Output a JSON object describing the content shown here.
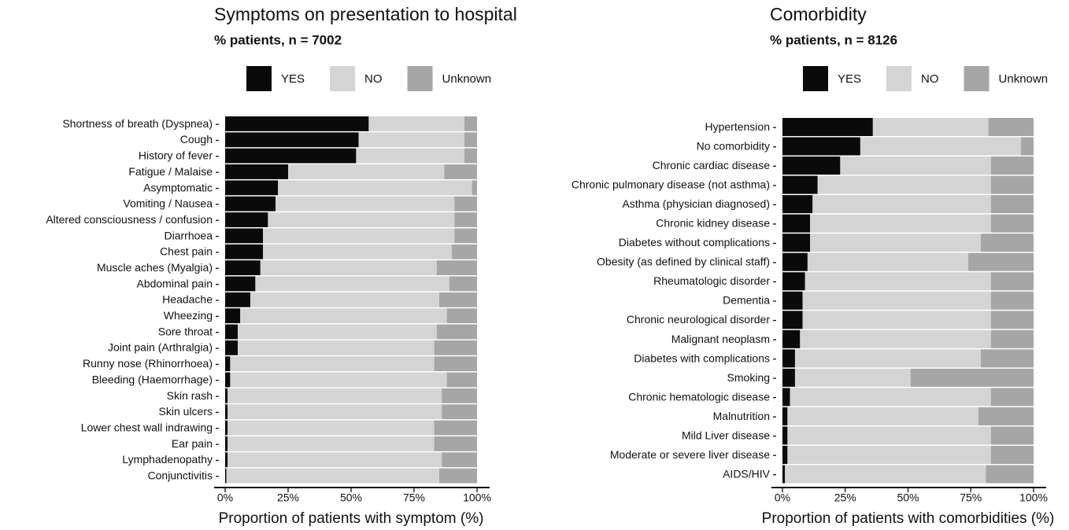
{
  "chart_data": [
    {
      "type": "bar",
      "orientation": "horizontal",
      "stacked": true,
      "title": "Symptoms on presentation to hospital",
      "subtitle": "% patients, n = 7002",
      "x_label": "Proportion of patients with symptom (%)",
      "categories": [
        "Shortness of breath (Dyspnea)",
        "Cough",
        "History of fever",
        "Fatigue / Malaise",
        "Asymptomatic",
        "Vomiting / Nausea",
        "Altered consciousness / confusion",
        "Diarrhoea",
        "Chest pain",
        "Muscle aches (Myalgia)",
        "Abdominal pain",
        "Headache",
        "Wheezing",
        "Sore throat",
        "Joint pain (Arthralgia)",
        "Runny nose (Rhinorrhoea)",
        "Bleeding (Haemorrhage)",
        "Skin rash",
        "Skin ulcers",
        "Lower chest wall indrawing",
        "Ear pain",
        "Lymphadenopathy",
        "Conjunctivitis"
      ],
      "highlight": [
        4
      ],
      "highlight_color": "#e8251f",
      "series": [
        {
          "name": "YES",
          "color": "#0a0a0a",
          "values": [
            57,
            53,
            52,
            25,
            21,
            20,
            17,
            15,
            15,
            14,
            12,
            10,
            6,
            5,
            5,
            2,
            2,
            1,
            1,
            1,
            1,
            1,
            0.5
          ]
        },
        {
          "name": "NO",
          "color": "#d4d4d4",
          "values": [
            38,
            42,
            43,
            62,
            77,
            71,
            74,
            76,
            75,
            70,
            77,
            75,
            82,
            79,
            78,
            81,
            86,
            85,
            85,
            82,
            82,
            85,
            84.5
          ]
        },
        {
          "name": "Unknown",
          "color": "#a6a6a6",
          "values": [
            5,
            5,
            5,
            13,
            2,
            9,
            9,
            9,
            10,
            16,
            11,
            15,
            12,
            16,
            17,
            17,
            12,
            14,
            14,
            17,
            17,
            14,
            15
          ]
        }
      ],
      "xlim": [
        0,
        100
      ],
      "xticks": [
        {
          "value": 0,
          "label": "0%"
        },
        {
          "value": 25,
          "label": "25%"
        },
        {
          "value": 50,
          "label": "50%"
        },
        {
          "value": 75,
          "label": "75%"
        },
        {
          "value": 100,
          "label": "100%"
        }
      ]
    },
    {
      "type": "bar",
      "orientation": "horizontal",
      "stacked": true,
      "title": "Comorbidity",
      "subtitle": "% patients, n = 8126",
      "x_label": "Proportion of patients with comorbidities (%)",
      "categories": [
        "Hypertension",
        "No comorbidity",
        "Chronic cardiac disease",
        "Chronic pulmonary disease (not asthma)",
        "Asthma (physician diagnosed)",
        "Chronic kidney disease",
        "Diabetes without complications",
        "Obesity (as defined by clinical staff)",
        "Rheumatologic disorder",
        "Dementia",
        "Chronic neurological disorder",
        "Malignant neoplasm",
        "Diabetes with complications",
        "Smoking",
        "Chronic hematologic disease",
        "Malnutrition",
        "Mild Liver disease",
        "Moderate or severe liver disease",
        "AIDS/HIV"
      ],
      "highlight": [
        1
      ],
      "highlight_color": "#e8251f",
      "series": [
        {
          "name": "YES",
          "color": "#0a0a0a",
          "values": [
            36,
            31,
            23,
            14,
            12,
            11,
            11,
            10,
            9,
            8,
            8,
            7,
            5,
            5,
            3,
            2,
            2,
            2,
            1
          ]
        },
        {
          "name": "NO",
          "color": "#d4d4d4",
          "values": [
            46,
            64,
            60,
            69,
            71,
            72,
            68,
            64,
            74,
            75,
            75,
            76,
            74,
            46,
            80,
            76,
            81,
            81,
            80
          ]
        },
        {
          "name": "Unknown",
          "color": "#a6a6a6",
          "values": [
            18,
            5,
            17,
            17,
            17,
            17,
            21,
            26,
            17,
            17,
            17,
            17,
            21,
            49,
            17,
            22,
            17,
            17,
            19
          ]
        }
      ],
      "xlim": [
        0,
        100
      ],
      "xticks": [
        {
          "value": 0,
          "label": "0%"
        },
        {
          "value": 25,
          "label": "25%"
        },
        {
          "value": 50,
          "label": "50%"
        },
        {
          "value": 75,
          "label": "75%"
        },
        {
          "value": 100,
          "label": "100%"
        }
      ]
    }
  ]
}
